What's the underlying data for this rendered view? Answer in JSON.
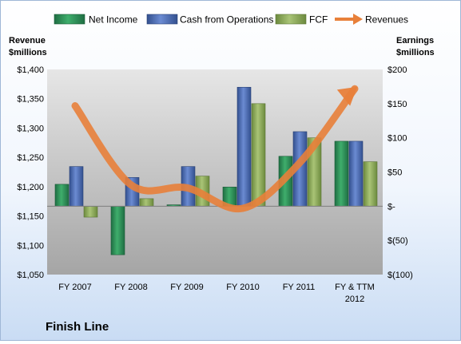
{
  "chart_data": {
    "type": "bar",
    "title": "Finish Line",
    "categories": [
      "FY 2007",
      "FY 2008",
      "FY 2009",
      "FY 2010",
      "FY 2011",
      "FY & TTM 2012"
    ],
    "series": [
      {
        "name": "Net Income",
        "type": "bar",
        "axis": "right",
        "values": [
          32,
          -71,
          2,
          28,
          73,
          95
        ]
      },
      {
        "name": "Cash from Operations",
        "type": "bar",
        "axis": "right",
        "values": [
          58,
          42,
          58,
          174,
          109,
          95
        ]
      },
      {
        "name": "FCF",
        "type": "bar",
        "axis": "right",
        "values": [
          -16,
          11,
          44,
          150,
          100,
          65
        ]
      },
      {
        "name": "Revenues",
        "type": "line",
        "axis": "left",
        "values": [
          1338,
          1203,
          1198,
          1163,
          1239,
          1367
        ]
      }
    ],
    "y_left": {
      "label": "Revenue $millions",
      "ylim": [
        1050,
        1400
      ],
      "ticks": [
        "$1,050",
        "$1,100",
        "$1,150",
        "$1,200",
        "$1,250",
        "$1,300",
        "$1,350",
        "$1,400"
      ]
    },
    "y_right": {
      "label": "Earnings $millions",
      "ylim": [
        -100,
        200
      ],
      "ticks": [
        "$(100)",
        "$(50)",
        "$-",
        "$50",
        "$100",
        "$150",
        "$200"
      ]
    },
    "legend_position": "top",
    "grid": false,
    "colors": {
      "net_income": "#2e8b57",
      "cash_from_operations": "#4f6fb8",
      "fcf": "#8faa5c",
      "revenues": "#e8803a"
    }
  }
}
